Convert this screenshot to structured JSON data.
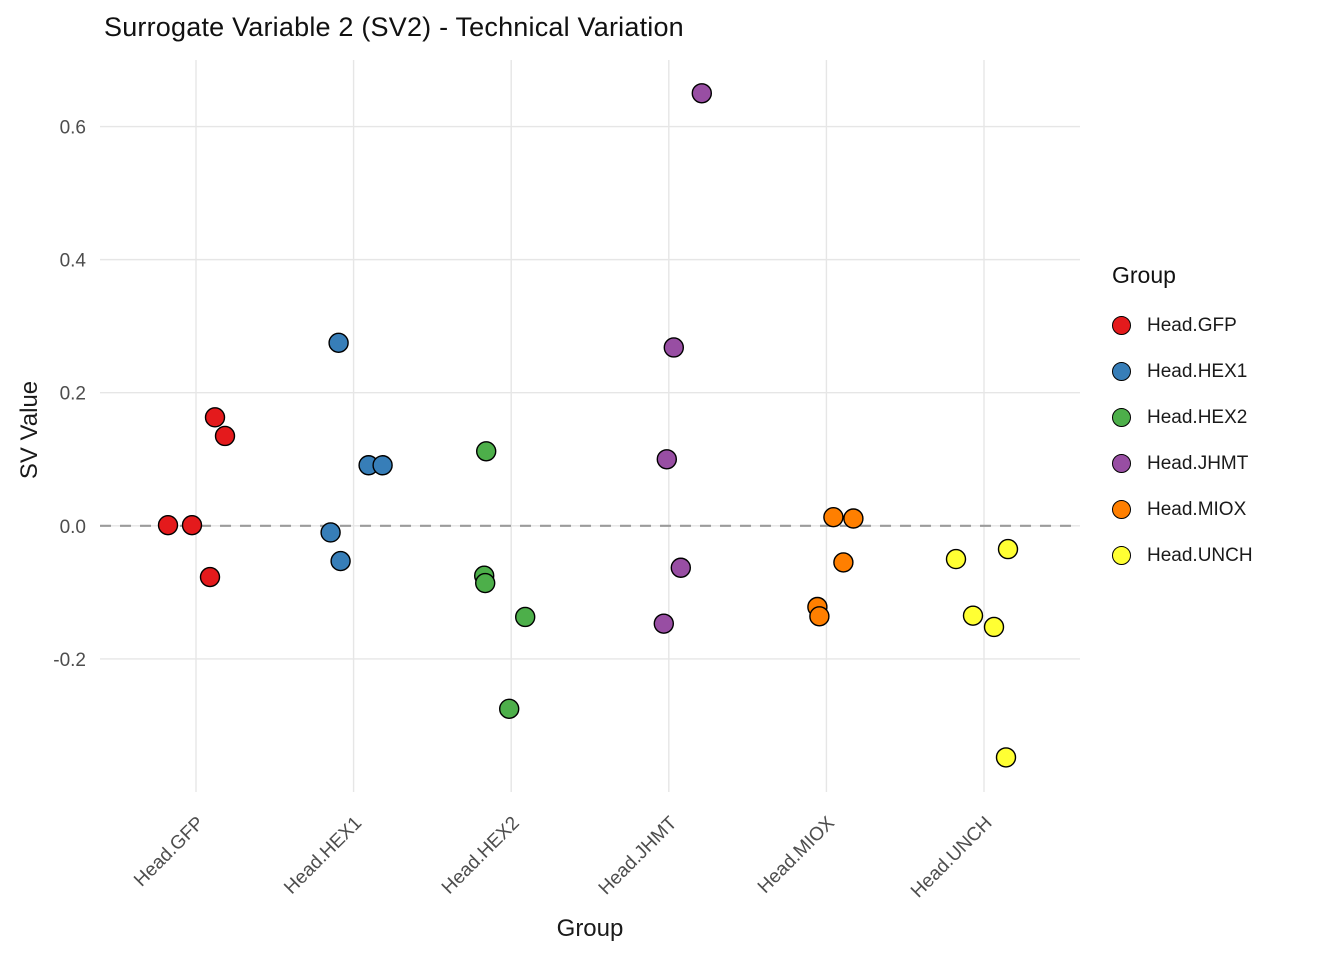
{
  "chart_data": {
    "type": "scatter",
    "title": "Surrogate Variable 2 (SV2) - Technical Variation",
    "xlabel": "Group",
    "ylabel": "SV Value",
    "legend_title": "Group",
    "categories": [
      "Head.GFP",
      "Head.HEX1",
      "Head.HEX2",
      "Head.JHMT",
      "Head.MIOX",
      "Head.UNCH"
    ],
    "y_ticks": [
      -0.2,
      0.0,
      0.2,
      0.4,
      0.6
    ],
    "ylim": [
      -0.4,
      0.7
    ],
    "zero_line": 0.0,
    "grid": "on",
    "legend_position": "right",
    "zero_line_style": "dashed",
    "point_colors": {
      "Head.GFP": "#E41A1C",
      "Head.HEX1": "#377EB8",
      "Head.HEX2": "#4DAF4A",
      "Head.JHMT": "#984EA3",
      "Head.MIOX": "#FF7F00",
      "Head.UNCH": "#FFFF33"
    },
    "series": [
      {
        "name": "Head.GFP",
        "color": "#E41A1C",
        "points": [
          {
            "dx": -28,
            "y": 0.001
          },
          {
            "dx": -4,
            "y": 0.001
          },
          {
            "dx": 19,
            "y": 0.163
          },
          {
            "dx": 29,
            "y": 0.135
          },
          {
            "dx": 14,
            "y": -0.077
          }
        ]
      },
      {
        "name": "Head.HEX1",
        "color": "#377EB8",
        "points": [
          {
            "dx": -15,
            "y": 0.275
          },
          {
            "dx": 15,
            "y": 0.091
          },
          {
            "dx": 29,
            "y": 0.091
          },
          {
            "dx": -23,
            "y": -0.01
          },
          {
            "dx": -13,
            "y": -0.053
          }
        ]
      },
      {
        "name": "Head.HEX2",
        "color": "#4DAF4A",
        "points": [
          {
            "dx": -25,
            "y": 0.112
          },
          {
            "dx": -27,
            "y": -0.075
          },
          {
            "dx": -26,
            "y": -0.086
          },
          {
            "dx": 14,
            "y": -0.137
          },
          {
            "dx": -2,
            "y": -0.275
          }
        ]
      },
      {
        "name": "Head.JHMT",
        "color": "#984EA3",
        "points": [
          {
            "dx": 33,
            "y": 0.65
          },
          {
            "dx": 5,
            "y": 0.268
          },
          {
            "dx": -2,
            "y": 0.1
          },
          {
            "dx": 12,
            "y": -0.063
          },
          {
            "dx": -5,
            "y": -0.147
          }
        ]
      },
      {
        "name": "Head.MIOX",
        "color": "#FF7F00",
        "points": [
          {
            "dx": 7,
            "y": 0.013
          },
          {
            "dx": 27,
            "y": 0.011
          },
          {
            "dx": 17,
            "y": -0.055
          },
          {
            "dx": -9,
            "y": -0.122
          },
          {
            "dx": -7,
            "y": -0.136
          }
        ]
      },
      {
        "name": "Head.UNCH",
        "color": "#FFFF33",
        "points": [
          {
            "dx": -28,
            "y": -0.05
          },
          {
            "dx": 24,
            "y": -0.035
          },
          {
            "dx": -11,
            "y": -0.135
          },
          {
            "dx": 10,
            "y": -0.152
          },
          {
            "dx": 22,
            "y": -0.348
          }
        ]
      }
    ],
    "colors": {
      "gridline": "#E6E6E6",
      "zero_line": "#9B9B9B",
      "point_stroke": "#000000",
      "tick_text": "#4D4D4D"
    }
  }
}
